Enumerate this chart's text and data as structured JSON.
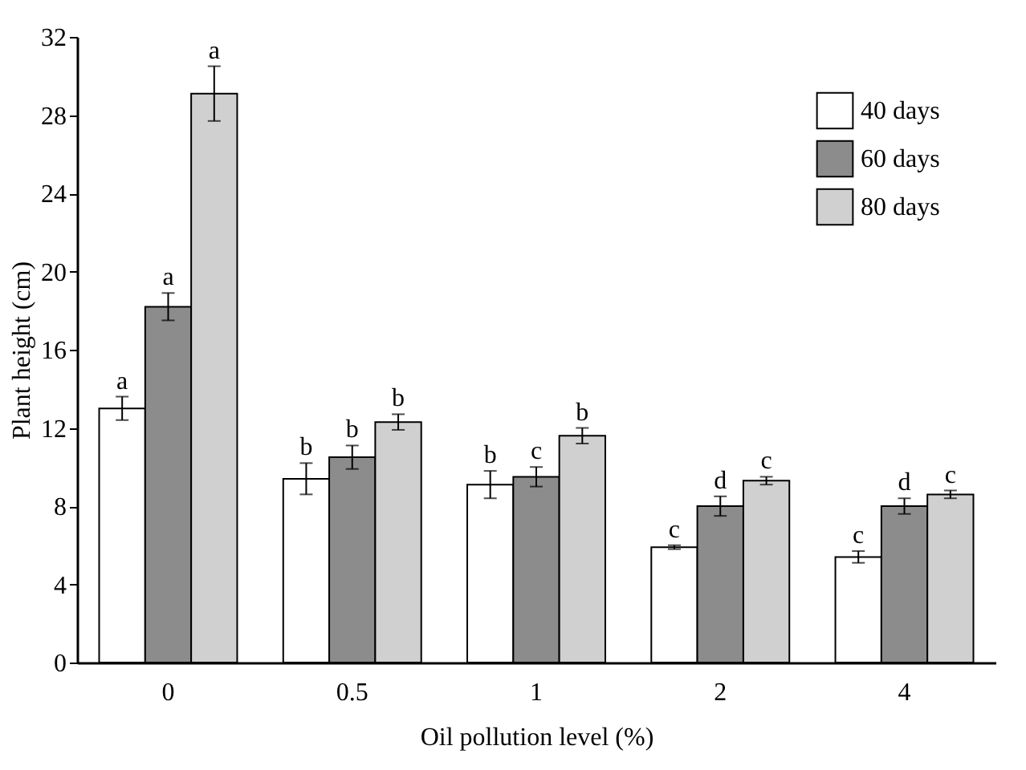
{
  "chart_data": {
    "type": "bar",
    "xlabel": "Oil pollution level (%)",
    "ylabel": "Plant height (cm)",
    "categories": [
      "0",
      "0.5",
      "1",
      "2",
      "4"
    ],
    "ylim": [
      0,
      32
    ],
    "yticks": [
      0,
      4,
      8,
      12,
      16,
      20,
      24,
      28,
      32
    ],
    "grid": false,
    "legend": "top right",
    "series": [
      {
        "name": "40 days",
        "color": "#ffffff",
        "values": [
          13.0,
          9.4,
          9.1,
          5.9,
          5.4
        ],
        "errors": [
          0.6,
          0.8,
          0.7,
          0.1,
          0.3
        ],
        "value_labels": [
          "a",
          "b",
          "b",
          "c",
          "c"
        ]
      },
      {
        "name": "60 days",
        "color": "#8c8c8c",
        "values": [
          18.2,
          10.5,
          9.5,
          8.0,
          8.0
        ],
        "errors": [
          0.7,
          0.6,
          0.5,
          0.5,
          0.4
        ],
        "value_labels": [
          "a",
          "b",
          "c",
          "d",
          "d"
        ]
      },
      {
        "name": "80 days",
        "color": "#d0d0d0",
        "values": [
          29.1,
          12.3,
          11.6,
          9.3,
          8.6
        ],
        "errors": [
          1.4,
          0.4,
          0.4,
          0.2,
          0.2
        ],
        "value_labels": [
          "a",
          "b",
          "b",
          "c",
          "c"
        ]
      }
    ]
  }
}
